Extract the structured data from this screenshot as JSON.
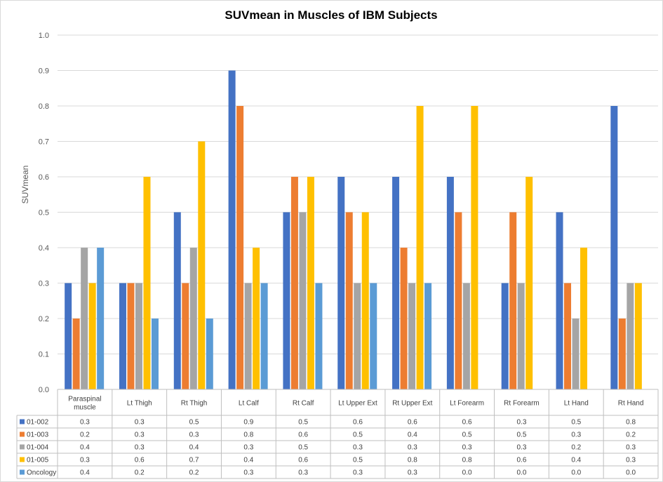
{
  "chart_data": {
    "type": "bar",
    "title": "SUVmean in Muscles of  IBM Subjects",
    "xlabel": "",
    "ylabel": "SUVmean",
    "ylim": [
      0,
      1.0
    ],
    "yticks": [
      "0.0",
      "0.1",
      "0.2",
      "0.3",
      "0.4",
      "0.5",
      "0.6",
      "0.7",
      "0.8",
      "0.9",
      "1.0"
    ],
    "grid": true,
    "legend": "data-table",
    "categories": [
      [
        "Paraspinal",
        "muscle"
      ],
      [
        "Lt Thigh"
      ],
      [
        "Rt Thigh"
      ],
      [
        "Lt Calf"
      ],
      [
        "Rt Calf"
      ],
      [
        "Lt Upper Ext"
      ],
      [
        "Rt Upper Ext"
      ],
      [
        "Lt Forearm"
      ],
      [
        "Rt Forearm"
      ],
      [
        "Lt Hand"
      ],
      [
        "Rt Hand"
      ]
    ],
    "series": [
      {
        "name": "01-002",
        "color": "#4472C4",
        "values": [
          0.3,
          0.3,
          0.5,
          0.9,
          0.5,
          0.6,
          0.6,
          0.6,
          0.3,
          0.5,
          0.8
        ],
        "labels": [
          "0.3",
          "0.3",
          "0.5",
          "0.9",
          "0.5",
          "0.6",
          "0.6",
          "0.6",
          "0.3",
          "0.5",
          "0.8"
        ]
      },
      {
        "name": "01-003",
        "color": "#ED7D31",
        "values": [
          0.2,
          0.3,
          0.3,
          0.8,
          0.6,
          0.5,
          0.4,
          0.5,
          0.5,
          0.3,
          0.2
        ],
        "labels": [
          "0.2",
          "0.3",
          "0.3",
          "0.8",
          "0.6",
          "0.5",
          "0.4",
          "0.5",
          "0.5",
          "0.3",
          "0.2"
        ]
      },
      {
        "name": "01-004",
        "color": "#A5A5A5",
        "values": [
          0.4,
          0.3,
          0.4,
          0.3,
          0.5,
          0.3,
          0.3,
          0.3,
          0.3,
          0.2,
          0.3
        ],
        "labels": [
          "0.4",
          "0.3",
          "0.4",
          "0.3",
          "0.5",
          "0.3",
          "0.3",
          "0.3",
          "0.3",
          "0.2",
          "0.3"
        ]
      },
      {
        "name": "01-005",
        "color": "#FFC000",
        "values": [
          0.3,
          0.6,
          0.7,
          0.4,
          0.6,
          0.5,
          0.8,
          0.8,
          0.6,
          0.4,
          0.3
        ],
        "labels": [
          "0.3",
          "0.6",
          "0.7",
          "0.4",
          "0.6",
          "0.5",
          "0.8",
          "0.8",
          "0.6",
          "0.4",
          "0.3"
        ]
      },
      {
        "name": "Oncology",
        "color": "#5B9BD5",
        "values": [
          0.4,
          0.2,
          0.2,
          0.3,
          0.3,
          0.3,
          0.3,
          0.0,
          0.0,
          0.0,
          0.0
        ],
        "labels": [
          "0.4",
          "0.2",
          "0.2",
          "0.3",
          "0.3",
          "0.3",
          "0.3",
          "0.0",
          "0.0",
          "0.0",
          "0.0"
        ]
      }
    ]
  }
}
